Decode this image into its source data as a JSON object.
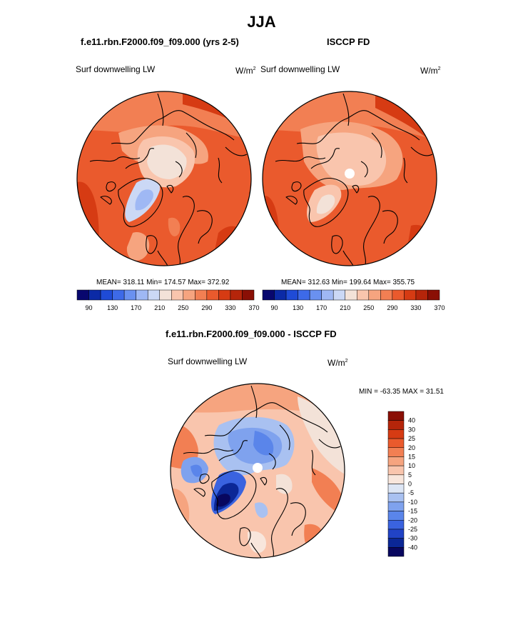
{
  "page_title": "JJA",
  "panels": [
    {
      "header": "f.e11.rbn.F2000.f09_f09.000 (yrs 2-5)",
      "variable": "Surf downwelling LW",
      "units_base": "W/m",
      "units_exp": "2",
      "stats": "MEAN= 318.11  Min= 174.57  Max= 372.92",
      "colorbar_labels": [
        "90",
        "130",
        "170",
        "210",
        "250",
        "290",
        "330",
        "370"
      ]
    },
    {
      "header": "ISCCP FD",
      "variable": "Surf downwelling LW",
      "units_base": "W/m",
      "units_exp": "2",
      "stats": "MEAN= 312.63  Min= 199.64  Max= 355.75",
      "colorbar_labels": [
        "90",
        "130",
        "170",
        "210",
        "250",
        "290",
        "330",
        "370"
      ]
    }
  ],
  "diff_panel": {
    "header": "f.e11.rbn.F2000.f09_f09.000 - ISCCP FD",
    "variable": "Surf downwelling LW",
    "units_base": "W/m",
    "units_exp": "2",
    "minmax": "MIN = -63.35 MAX =  31.51",
    "colorbar_labels": [
      "40",
      "30",
      "25",
      "20",
      "15",
      "10",
      "5",
      "0",
      "-5",
      "-10",
      "-15",
      "-20",
      "-25",
      "-30",
      "-40"
    ]
  },
  "colors": {
    "abs_scale": [
      "#08076e",
      "#0b2aa6",
      "#1f4bd6",
      "#3d6ae8",
      "#6a91f0",
      "#9fb8f4",
      "#cbd8f5",
      "#f3e2d8",
      "#f9c5ad",
      "#f6a47f",
      "#f27f53",
      "#ea5a2d",
      "#d63b13",
      "#b5250a",
      "#8a0f05"
    ],
    "diff_scale": [
      "#8a0f05",
      "#b5250a",
      "#d63b13",
      "#ea5a2d",
      "#f27f53",
      "#f6a47f",
      "#f9c5ad",
      "#f8e6dc",
      "#dde6f5",
      "#a9c1f1",
      "#7fa2ee",
      "#5a85ea",
      "#3a63df",
      "#2143c6",
      "#0b2796",
      "#08075f"
    ]
  }
}
